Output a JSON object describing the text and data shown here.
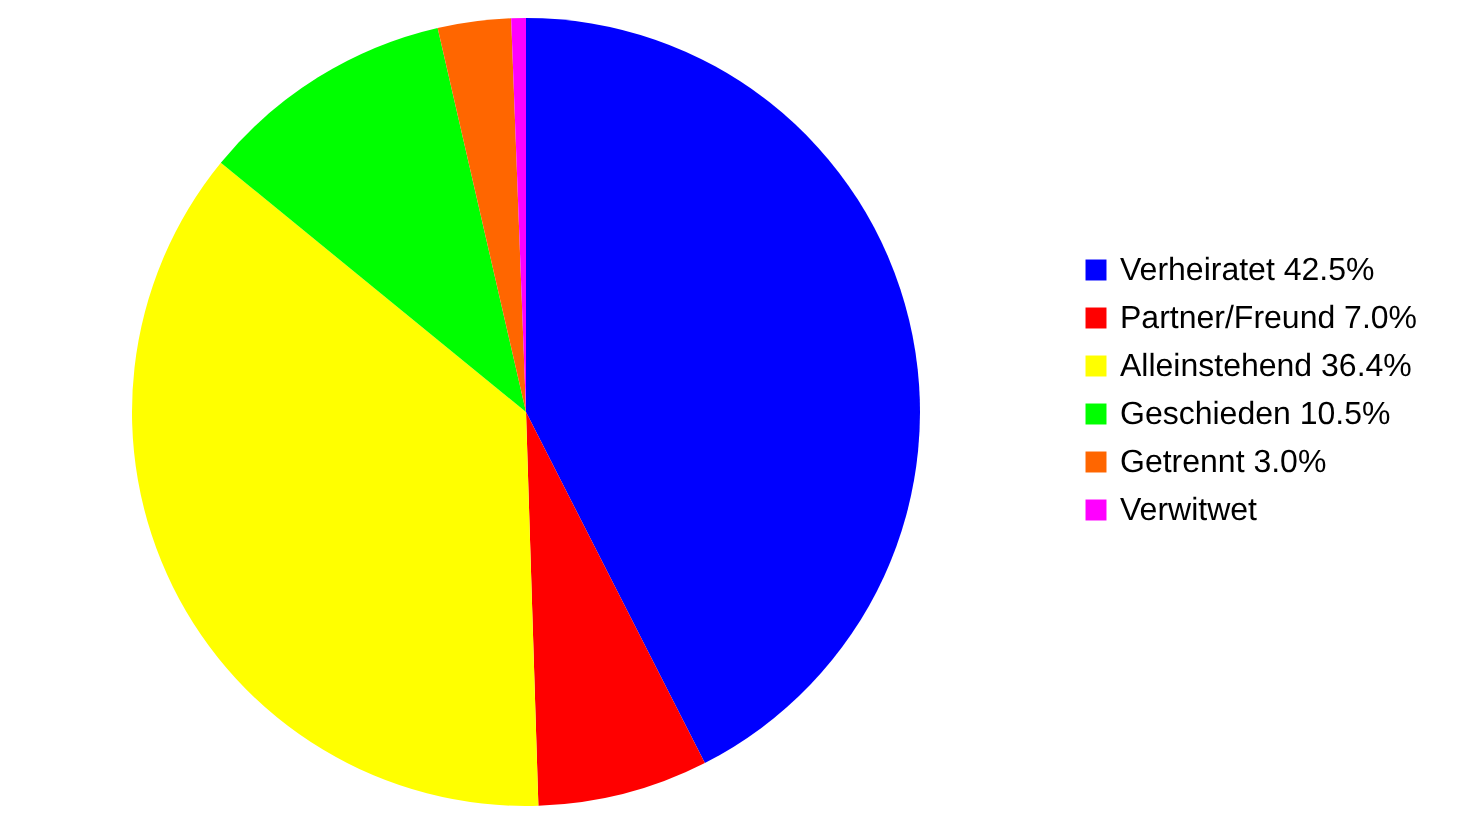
{
  "chart_data": {
    "type": "pie",
    "categories": [
      "Verheiratet 42.5%",
      "Partner/Freund 7.0%",
      "Alleinstehend 36.4%",
      "Geschieden 10.5%",
      "Getrennt 3.0%",
      "Verwitwet"
    ],
    "values": [
      42.5,
      7.0,
      36.4,
      10.5,
      3.0,
      0.6
    ],
    "colors": [
      "#0000ff",
      "#ff0000",
      "#ffff00",
      "#00ff00",
      "#ff6600",
      "#ff00ff"
    ],
    "legend": "right"
  }
}
